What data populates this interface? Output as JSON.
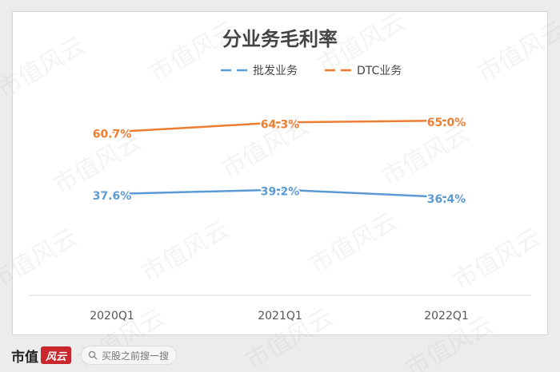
{
  "chart_data": {
    "type": "line",
    "title": "分业务毛利率",
    "categories": [
      "2020Q1",
      "2021Q1",
      "2022Q1"
    ],
    "series": [
      {
        "name": "批发业务",
        "values": [
          37.6,
          39.2,
          36.4
        ],
        "labels": [
          "37.6%",
          "39.2%",
          "36.4%"
        ],
        "color": "#5b9bd5"
      },
      {
        "name": "DTC业务",
        "values": [
          60.7,
          64.3,
          65.0
        ],
        "labels": [
          "60.7%",
          "64.3%",
          "65.0%"
        ],
        "color": "#ed7d31"
      }
    ],
    "ylim": [
      0,
      100
    ],
    "grid": false,
    "legend": "top"
  },
  "watermark": "市值风云",
  "footer": {
    "brand": "市值",
    "brand_mark": "风云",
    "search_placeholder": "买股之前搜一搜"
  }
}
